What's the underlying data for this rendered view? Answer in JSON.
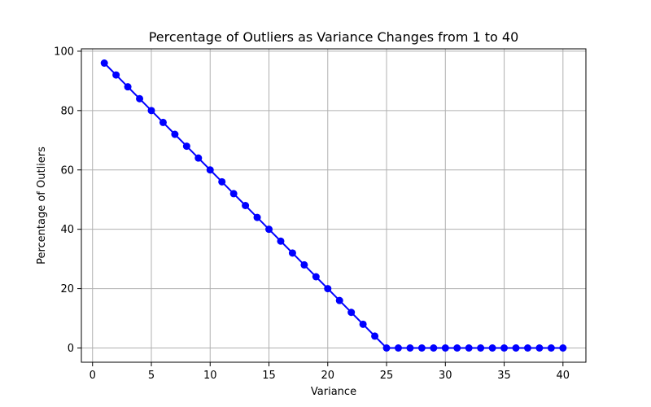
{
  "chart_data": {
    "type": "line",
    "title": "Percentage of Outliers as Variance Changes from 1 to 40",
    "xlabel": "Variance",
    "ylabel": "Percentage of Outliers",
    "xlim": [
      -0.95,
      41.95
    ],
    "ylim": [
      -4.8,
      100.8
    ],
    "xticks": [
      0,
      5,
      10,
      15,
      20,
      25,
      30,
      35,
      40
    ],
    "yticks": [
      0,
      20,
      40,
      60,
      80,
      100
    ],
    "grid": true,
    "series": [
      {
        "color": "#0000ff",
        "marker": "circle",
        "x": [
          1,
          2,
          3,
          4,
          5,
          6,
          7,
          8,
          9,
          10,
          11,
          12,
          13,
          14,
          15,
          16,
          17,
          18,
          19,
          20,
          21,
          22,
          23,
          24,
          25,
          26,
          27,
          28,
          29,
          30,
          31,
          32,
          33,
          34,
          35,
          36,
          37,
          38,
          39,
          40
        ],
        "y": [
          96,
          92,
          88,
          84,
          80,
          76,
          72,
          68,
          64,
          60,
          56,
          52,
          48,
          44,
          40,
          36,
          32,
          28,
          24,
          20,
          16,
          12,
          8,
          4,
          0,
          0,
          0,
          0,
          0,
          0,
          0,
          0,
          0,
          0,
          0,
          0,
          0,
          0,
          0,
          0
        ]
      }
    ]
  }
}
